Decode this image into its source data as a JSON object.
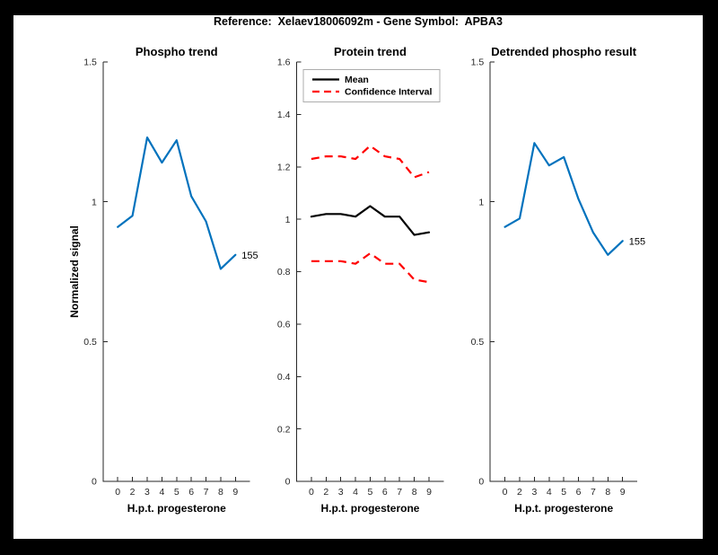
{
  "figure_title": "Reference:  Xelaev18006092m - Gene Symbol:  APBA3",
  "palette": {
    "blue": "#0072BD",
    "red": "#FF0000",
    "black": "#000000",
    "axis": "#262626",
    "legend_border": "#ADADAD",
    "background": "#000000",
    "canvas": "#FFFFFF"
  },
  "chart_data": [
    {
      "type": "line",
      "title": "Phospho trend",
      "xlabel": "H.p.t. progesterone",
      "ylabel": "Normalized signal",
      "grid": false,
      "xlim": [
        0,
        10
      ],
      "ylim": [
        0,
        1.5
      ],
      "x": [
        1,
        2,
        3,
        4,
        5,
        6,
        7,
        8,
        9
      ],
      "x_tick_labels": [
        "0",
        "2",
        "3",
        "4",
        "5",
        "6",
        "7",
        "8",
        "9"
      ],
      "yticks": [
        0,
        0.5,
        1,
        1.5
      ],
      "ytick_labels": [
        "0",
        "0.5",
        "1",
        "1.5"
      ],
      "series": [
        {
          "name": "phospho-signal",
          "color": "blue",
          "style": "solid",
          "values": [
            0.91,
            0.95,
            1.23,
            1.14,
            1.22,
            1.02,
            0.93,
            0.76,
            0.81
          ]
        }
      ],
      "annotations": [
        {
          "text": "155",
          "attach": "last-point",
          "series": 0
        }
      ]
    },
    {
      "type": "line",
      "title": "Protein trend",
      "xlabel": "H.p.t. progesterone",
      "ylabel": "",
      "grid": false,
      "xlim": [
        0,
        10
      ],
      "ylim": [
        0,
        1.6
      ],
      "x": [
        1,
        2,
        3,
        4,
        5,
        6,
        7,
        8,
        9
      ],
      "x_tick_labels": [
        "0",
        "2",
        "3",
        "4",
        "5",
        "6",
        "7",
        "8",
        "9"
      ],
      "yticks": [
        0,
        0.2,
        0.4,
        0.6,
        0.8,
        1,
        1.2,
        1.4,
        1.6
      ],
      "ytick_labels": [
        "0",
        "0.2",
        "0.4",
        "0.6",
        "0.8",
        "1",
        "1.2",
        "1.4",
        "1.6"
      ],
      "series": [
        {
          "name": "mean",
          "color": "black",
          "style": "solid",
          "values": [
            1.01,
            1.02,
            1.02,
            1.01,
            1.05,
            1.01,
            1.01,
            0.94,
            0.95
          ]
        },
        {
          "name": "confidence-interval-upper",
          "color": "red",
          "style": "dashed",
          "values": [
            1.23,
            1.24,
            1.24,
            1.23,
            1.28,
            1.24,
            1.23,
            1.16,
            1.18
          ]
        },
        {
          "name": "confidence-interval-lower",
          "color": "red",
          "style": "dashed",
          "values": [
            0.84,
            0.84,
            0.84,
            0.83,
            0.87,
            0.83,
            0.83,
            0.77,
            0.76
          ]
        }
      ],
      "legend": {
        "position": "northwest-inside",
        "entries": [
          {
            "label": "Mean",
            "color": "black",
            "style": "solid"
          },
          {
            "label": "Confidence Interval",
            "color": "red",
            "style": "dashed"
          }
        ]
      },
      "annotations": []
    },
    {
      "type": "line",
      "title": "Detrended phospho result",
      "xlabel": "H.p.t. progesterone",
      "ylabel": "",
      "grid": false,
      "xlim": [
        0,
        10
      ],
      "ylim": [
        0,
        1.5
      ],
      "x": [
        1,
        2,
        3,
        4,
        5,
        6,
        7,
        8,
        9
      ],
      "x_tick_labels": [
        "0",
        "2",
        "3",
        "4",
        "5",
        "6",
        "7",
        "8",
        "9"
      ],
      "yticks": [
        0,
        0.5,
        1,
        1.5
      ],
      "ytick_labels": [
        "0",
        "0.5",
        "1",
        "1.5"
      ],
      "series": [
        {
          "name": "detrended-phospho-signal",
          "color": "blue",
          "style": "solid",
          "values": [
            0.91,
            0.94,
            1.21,
            1.13,
            1.16,
            1.01,
            0.89,
            0.81,
            0.86
          ]
        }
      ],
      "annotations": [
        {
          "text": "155",
          "attach": "last-point",
          "series": 0
        }
      ]
    }
  ]
}
